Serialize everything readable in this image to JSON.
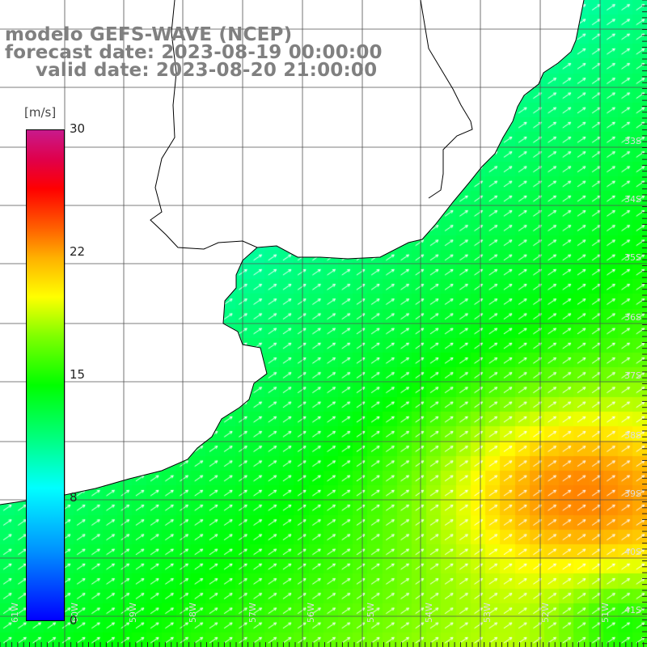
{
  "title": {
    "line1": "modelo GEFS-WAVE (NCEP)",
    "line2": "forecast date: 2023-08-19 00:00:00",
    "line3": "valid date: 2023-08-20 21:00:00"
  },
  "legend": {
    "unit": "[m/s]",
    "ticks": [
      "30",
      "22",
      "15",
      "8",
      "0"
    ],
    "tick_values": [
      30,
      22,
      15,
      8,
      0
    ]
  },
  "colors": {
    "scale": [
      "#0000ff",
      "#0090ff",
      "#00ffff",
      "#00ff80",
      "#00ff00",
      "#80ff00",
      "#ffff00",
      "#ffb000",
      "#ff6000",
      "#ff0000",
      "#c81a8c"
    ],
    "land": "#ffffff",
    "grid": "#505050",
    "arrow": "#ffffff"
  },
  "latitude_labels": [
    "33S",
    "34S",
    "35S",
    "36S",
    "37S",
    "38S",
    "39S",
    "40S",
    "41S"
  ],
  "longitude_labels": [
    "61W",
    "60W",
    "59W",
    "58W",
    "57W",
    "56W",
    "55W",
    "54W",
    "53W",
    "52W",
    "51W"
  ],
  "map_features": [
    "wind-arrows",
    "coastline",
    "lat-lon-grid"
  ]
}
